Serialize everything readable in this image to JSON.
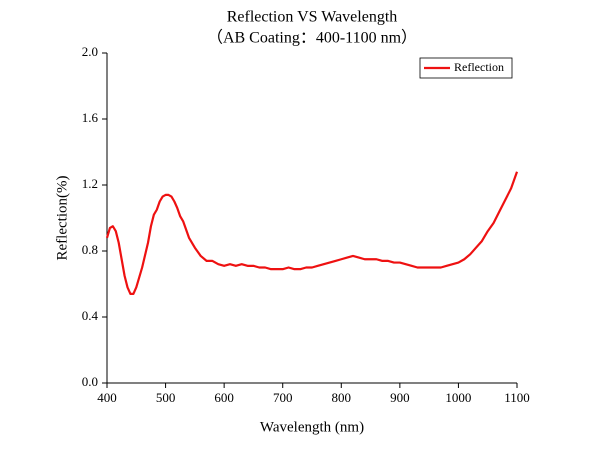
{
  "chart_data": {
    "type": "line",
    "title": "Reflection VS Wavelength",
    "subtitle": "（AB Coating：400-1100 nm）",
    "x_label": "Wavelength (nm)",
    "y_label": "Reflection(%)",
    "x": [
      400,
      405,
      410,
      415,
      420,
      425,
      430,
      435,
      440,
      445,
      450,
      460,
      470,
      475,
      480,
      485,
      490,
      495,
      500,
      505,
      510,
      515,
      520,
      525,
      530,
      540,
      550,
      560,
      570,
      580,
      590,
      600,
      610,
      620,
      630,
      640,
      650,
      660,
      670,
      680,
      690,
      700,
      710,
      720,
      730,
      740,
      750,
      760,
      770,
      780,
      790,
      800,
      810,
      820,
      830,
      840,
      850,
      860,
      870,
      880,
      890,
      900,
      910,
      920,
      930,
      940,
      950,
      960,
      970,
      980,
      990,
      1000,
      1010,
      1020,
      1030,
      1040,
      1050,
      1060,
      1070,
      1080,
      1090,
      1100
    ],
    "series": [
      {
        "name": "Reflection",
        "color": "#ee1111",
        "values": [
          0.88,
          0.94,
          0.95,
          0.92,
          0.85,
          0.75,
          0.65,
          0.58,
          0.54,
          0.54,
          0.58,
          0.7,
          0.85,
          0.95,
          1.02,
          1.05,
          1.1,
          1.13,
          1.14,
          1.14,
          1.13,
          1.1,
          1.06,
          1.01,
          0.98,
          0.88,
          0.82,
          0.77,
          0.74,
          0.74,
          0.72,
          0.71,
          0.72,
          0.71,
          0.72,
          0.71,
          0.71,
          0.7,
          0.7,
          0.69,
          0.69,
          0.69,
          0.7,
          0.69,
          0.69,
          0.7,
          0.7,
          0.71,
          0.72,
          0.73,
          0.74,
          0.75,
          0.76,
          0.77,
          0.76,
          0.75,
          0.75,
          0.75,
          0.74,
          0.74,
          0.73,
          0.73,
          0.72,
          0.71,
          0.7,
          0.7,
          0.7,
          0.7,
          0.7,
          0.71,
          0.72,
          0.73,
          0.75,
          0.78,
          0.82,
          0.86,
          0.92,
          0.97,
          1.04,
          1.11,
          1.18,
          1.28
        ]
      }
    ],
    "xlim": [
      400,
      1100
    ],
    "xticks": [
      400,
      500,
      600,
      700,
      800,
      900,
      1000,
      1100
    ],
    "ylim": [
      0,
      2
    ],
    "yticks": [
      {
        "value": 0,
        "label": "0.0"
      },
      {
        "value": 0.4,
        "label": "0.4"
      },
      {
        "value": 0.8,
        "label": "0.8"
      },
      {
        "value": 1.2,
        "label": "1.2"
      },
      {
        "value": 1.6,
        "label": "1.6"
      },
      {
        "value": 2,
        "label": "2.0"
      }
    ],
    "legend": "upper right"
  }
}
